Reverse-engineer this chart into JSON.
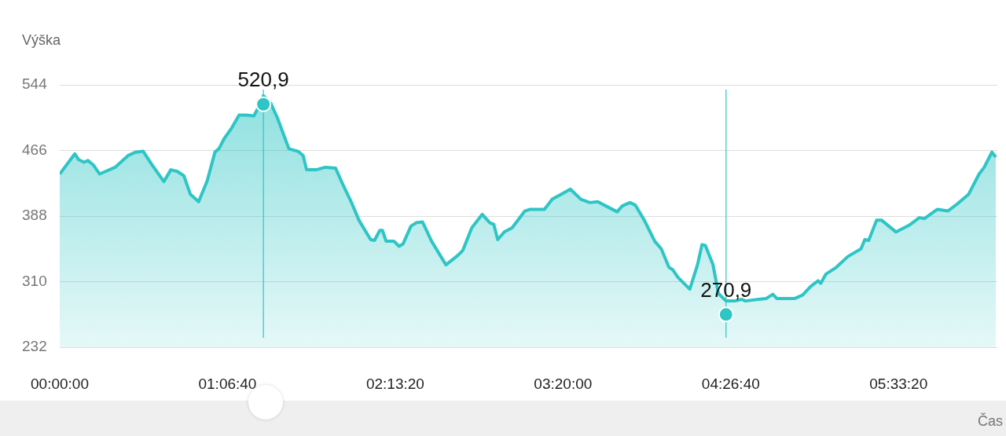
{
  "chart_data": {
    "type": "area",
    "xlabel": "Čas",
    "ylabel": "Výška",
    "xlim": [
      0,
      6.21
    ],
    "ylim": [
      232,
      544
    ],
    "xticks": [
      {
        "value": 0,
        "label": "00:00:00"
      },
      {
        "value": 1.1111,
        "label": "01:06:40"
      },
      {
        "value": 2.2222,
        "label": "02:13:20"
      },
      {
        "value": 3.3333,
        "label": "03:20:00"
      },
      {
        "value": 4.4444,
        "label": "04:26:40"
      },
      {
        "value": 5.5556,
        "label": "05:33:20"
      }
    ],
    "yticks": [
      232,
      310,
      388,
      466,
      544
    ],
    "grid": "y",
    "ref_lines": [
      {
        "axis": "x",
        "value": 1.349,
        "color": "#2ec5c5"
      },
      {
        "axis": "x",
        "value": 4.413,
        "color": "#2ec5c5"
      }
    ],
    "series": [
      {
        "type": "area",
        "color": "#2ec5c5",
        "x": [
          0,
          0.1,
          0.126,
          0.161,
          0.187,
          0.221,
          0.264,
          0.367,
          0.453,
          0.504,
          0.553,
          0.607,
          0.65,
          0.69,
          0.736,
          0.779,
          0.822,
          0.865,
          0.92,
          0.977,
          1.028,
          1.054,
          1.089,
          1.14,
          1.188,
          1.235,
          1.286,
          1.321,
          1.349,
          1.398,
          1.441,
          1.518,
          1.578,
          1.612,
          1.635,
          1.698,
          1.759,
          1.827,
          1.879,
          1.93,
          1.982,
          2.059,
          2.085,
          2.12,
          2.137,
          2.162,
          2.214,
          2.248,
          2.274,
          2.326,
          2.36,
          2.403,
          2.463,
          2.558,
          2.635,
          2.669,
          2.729,
          2.798,
          2.849,
          2.875,
          2.901,
          2.944,
          2.996,
          3.081,
          3.116,
          3.21,
          3.262,
          3.322,
          3.382,
          3.451,
          3.511,
          3.563,
          3.649,
          3.692,
          3.726,
          3.777,
          3.812,
          3.872,
          3.941,
          3.984,
          4.035,
          4.061,
          4.095,
          4.173,
          4.224,
          4.254,
          4.276,
          4.327,
          4.362,
          4.413,
          4.473,
          4.516,
          4.542,
          4.628,
          4.68,
          4.723,
          4.749,
          4.869,
          4.92,
          4.972,
          5.023,
          5.04,
          5.075,
          5.143,
          5.221,
          5.307,
          5.332,
          5.358,
          5.41,
          5.444,
          5.539,
          5.625,
          5.693,
          5.728,
          5.813,
          5.882,
          5.942,
          6.02,
          6.089,
          6.123,
          6.174,
          6.2
        ],
        "values": [
          438,
          462,
          455,
          452,
          454,
          449,
          438,
          446,
          460,
          464,
          465,
          450,
          439,
          429,
          443,
          441,
          436,
          414,
          405,
          430,
          464,
          468,
          480,
          493,
          508,
          508,
          507,
          519,
          531,
          522,
          505,
          468,
          465,
          460,
          443,
          443,
          446,
          445,
          424,
          405,
          383,
          360,
          359,
          371,
          371,
          358,
          358,
          352,
          355,
          376,
          380,
          381,
          358,
          330,
          341,
          347,
          374,
          390,
          380,
          378,
          360,
          369,
          374,
          394,
          396,
          396,
          408,
          414,
          420,
          408,
          404,
          405,
          397,
          393,
          400,
          404,
          401,
          383,
          358,
          349,
          327,
          324,
          315,
          301,
          330,
          354,
          353,
          330,
          296,
          287,
          287,
          289,
          287,
          289,
          290,
          295,
          290,
          290,
          294,
          304,
          311,
          308,
          319,
          327,
          340,
          349,
          360,
          359,
          383,
          383,
          369,
          377,
          386,
          385,
          396,
          394,
          402,
          414,
          438,
          446,
          464,
          458
        ]
      },
      {
        "type": "scatter",
        "color": "#2ec5c5",
        "marker": "circle",
        "x": [
          1.349,
          4.413
        ],
        "values": [
          520.9,
          270.9
        ],
        "value_labels": [
          "520,9",
          "270,9"
        ]
      }
    ]
  }
}
